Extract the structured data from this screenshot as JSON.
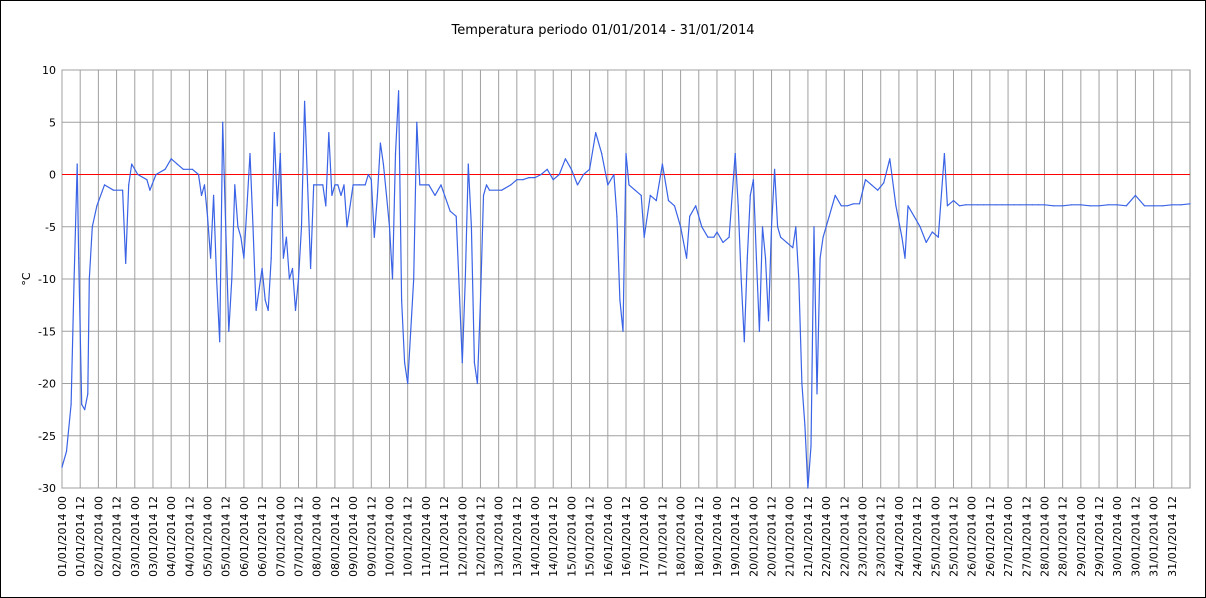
{
  "chart_data": {
    "type": "line",
    "title": "Temperatura periodo 01/01/2014 - 31/01/2014",
    "ylabel": "°C",
    "xlabel": "",
    "ylim": [
      -30,
      10
    ],
    "yticks": [
      10,
      5,
      0,
      -5,
      -10,
      -15,
      -20,
      -25,
      -30
    ],
    "xlim": [
      "2014-01-01 00:00",
      "2014-02-01 00:00"
    ],
    "x_tick_labels": [
      "01/01/2014 00",
      "01/01/2014 12",
      "02/01/2014 00",
      "02/01/2014 12",
      "03/01/2014 00",
      "03/01/2014 12",
      "04/01/2014 00",
      "04/01/2014 12",
      "05/01/2014 00",
      "05/01/2014 12",
      "06/01/2014 00",
      "06/01/2014 12",
      "07/01/2014 00",
      "07/01/2014 12",
      "08/01/2014 00",
      "08/01/2014 12",
      "09/01/2014 00",
      "09/01/2014 12",
      "10/01/2014 00",
      "10/01/2014 12",
      "11/01/2014 00",
      "11/01/2014 12",
      "12/01/2014 00",
      "12/01/2014 12",
      "13/01/2014 00",
      "13/01/2014 12",
      "14/01/2014 00",
      "14/01/2014 12",
      "15/01/2014 00",
      "15/01/2014 12",
      "16/01/2014 00",
      "16/01/2014 12",
      "17/01/2014 00",
      "17/01/2014 12",
      "18/01/2014 00",
      "18/01/2014 12",
      "19/01/2014 00",
      "19/01/2014 12",
      "20/01/2014 00",
      "20/01/2014 12",
      "21/01/2014 00",
      "21/01/2014 12",
      "22/01/2014 00",
      "22/01/2014 12",
      "23/01/2014 00",
      "23/01/2014 12",
      "24/01/2014 00",
      "24/01/2014 12",
      "25/01/2014 00",
      "25/01/2014 12",
      "26/01/2014 00",
      "26/01/2014 12",
      "27/01/2014 00",
      "27/01/2014 12",
      "28/01/2014 00",
      "28/01/2014 12",
      "29/01/2014 00",
      "29/01/2014 12",
      "30/01/2014 00",
      "30/01/2014 12",
      "31/01/2014 00",
      "31/01/2014 12"
    ],
    "grid": true,
    "reference_line": {
      "y": 0,
      "color": "#ff0000"
    },
    "series": [
      {
        "color": "#3a63e6",
        "points": [
          [
            "2014-01-01 00:00",
            -28
          ],
          [
            "2014-01-01 03:00",
            -26.5
          ],
          [
            "2014-01-01 06:00",
            -22
          ],
          [
            "2014-01-01 08:00",
            -10
          ],
          [
            "2014-01-01 10:00",
            1
          ],
          [
            "2014-01-01 11:00",
            -8
          ],
          [
            "2014-01-01 13:00",
            -22
          ],
          [
            "2014-01-01 15:00",
            -22.5
          ],
          [
            "2014-01-01 17:00",
            -21
          ],
          [
            "2014-01-01 18:00",
            -10
          ],
          [
            "2014-01-01 20:00",
            -5
          ],
          [
            "2014-01-01 23:00",
            -3
          ],
          [
            "2014-01-02 04:00",
            -1
          ],
          [
            "2014-01-02 10:00",
            -1.5
          ],
          [
            "2014-01-02 16:00",
            -1.5
          ],
          [
            "2014-01-02 18:00",
            -8.5
          ],
          [
            "2014-01-02 20:00",
            -1
          ],
          [
            "2014-01-02 22:00",
            1
          ],
          [
            "2014-01-03 02:00",
            0
          ],
          [
            "2014-01-03 08:00",
            -0.5
          ],
          [
            "2014-01-03 10:00",
            -1.5
          ],
          [
            "2014-01-03 14:00",
            0
          ],
          [
            "2014-01-03 20:00",
            0.5
          ],
          [
            "2014-01-04 00:00",
            1.5
          ],
          [
            "2014-01-04 04:00",
            1
          ],
          [
            "2014-01-04 08:00",
            0.5
          ],
          [
            "2014-01-04 14:00",
            0.5
          ],
          [
            "2014-01-04 18:00",
            0
          ],
          [
            "2014-01-04 20:00",
            -2
          ],
          [
            "2014-01-04 22:00",
            -1
          ],
          [
            "2014-01-05 00:00",
            -4
          ],
          [
            "2014-01-05 02:00",
            -8
          ],
          [
            "2014-01-05 04:00",
            -2
          ],
          [
            "2014-01-05 06:00",
            -10
          ],
          [
            "2014-01-05 08:00",
            -16
          ],
          [
            "2014-01-05 10:00",
            5
          ],
          [
            "2014-01-05 12:00",
            -5
          ],
          [
            "2014-01-05 14:00",
            -15
          ],
          [
            "2014-01-05 16:00",
            -10
          ],
          [
            "2014-01-05 18:00",
            -1
          ],
          [
            "2014-01-05 20:00",
            -5
          ],
          [
            "2014-01-05 22:00",
            -6
          ],
          [
            "2014-01-06 00:00",
            -8
          ],
          [
            "2014-01-06 02:00",
            -3
          ],
          [
            "2014-01-06 04:00",
            2
          ],
          [
            "2014-01-06 06:00",
            -5
          ],
          [
            "2014-01-06 08:00",
            -13
          ],
          [
            "2014-01-06 10:00",
            -11
          ],
          [
            "2014-01-06 12:00",
            -9
          ],
          [
            "2014-01-06 14:00",
            -12
          ],
          [
            "2014-01-06 16:00",
            -13
          ],
          [
            "2014-01-06 18:00",
            -8
          ],
          [
            "2014-01-06 20:00",
            4
          ],
          [
            "2014-01-06 22:00",
            -3
          ],
          [
            "2014-01-07 00:00",
            2
          ],
          [
            "2014-01-07 02:00",
            -8
          ],
          [
            "2014-01-07 04:00",
            -6
          ],
          [
            "2014-01-07 06:00",
            -10
          ],
          [
            "2014-01-07 08:00",
            -9
          ],
          [
            "2014-01-07 10:00",
            -13
          ],
          [
            "2014-01-07 12:00",
            -10
          ],
          [
            "2014-01-07 14:00",
            -5
          ],
          [
            "2014-01-07 16:00",
            7
          ],
          [
            "2014-01-07 18:00",
            -1
          ],
          [
            "2014-01-07 20:00",
            -9
          ],
          [
            "2014-01-07 22:00",
            -1
          ],
          [
            "2014-01-08 04:00",
            -1
          ],
          [
            "2014-01-08 06:00",
            -3
          ],
          [
            "2014-01-08 08:00",
            4
          ],
          [
            "2014-01-08 10:00",
            -2
          ],
          [
            "2014-01-08 12:00",
            -1
          ],
          [
            "2014-01-08 14:00",
            -1
          ],
          [
            "2014-01-08 16:00",
            -2
          ],
          [
            "2014-01-08 18:00",
            -1
          ],
          [
            "2014-01-08 20:00",
            -5
          ],
          [
            "2014-01-08 22:00",
            -3
          ],
          [
            "2014-01-09 00:00",
            -1
          ],
          [
            "2014-01-09 04:00",
            -1
          ],
          [
            "2014-01-09 08:00",
            -1
          ],
          [
            "2014-01-09 10:00",
            0
          ],
          [
            "2014-01-09 12:00",
            -0.5
          ],
          [
            "2014-01-09 14:00",
            -6
          ],
          [
            "2014-01-09 16:00",
            -2
          ],
          [
            "2014-01-09 18:00",
            3
          ],
          [
            "2014-01-09 20:00",
            1
          ],
          [
            "2014-01-09 22:00",
            -2
          ],
          [
            "2014-01-10 00:00",
            -5
          ],
          [
            "2014-01-10 02:00",
            -10
          ],
          [
            "2014-01-10 04:00",
            2
          ],
          [
            "2014-01-10 06:00",
            8
          ],
          [
            "2014-01-10 08:00",
            -12
          ],
          [
            "2014-01-10 10:00",
            -18
          ],
          [
            "2014-01-10 12:00",
            -20
          ],
          [
            "2014-01-10 14:00",
            -15
          ],
          [
            "2014-01-10 16:00",
            -10
          ],
          [
            "2014-01-10 18:00",
            5
          ],
          [
            "2014-01-10 20:00",
            -1
          ],
          [
            "2014-01-11 02:00",
            -1
          ],
          [
            "2014-01-11 06:00",
            -2
          ],
          [
            "2014-01-11 10:00",
            -1
          ],
          [
            "2014-01-11 16:00",
            -3.5
          ],
          [
            "2014-01-11 20:00",
            -4
          ],
          [
            "2014-01-12 00:00",
            -18
          ],
          [
            "2014-01-12 02:00",
            -10
          ],
          [
            "2014-01-12 04:00",
            1
          ],
          [
            "2014-01-12 06:00",
            -5
          ],
          [
            "2014-01-12 08:00",
            -18
          ],
          [
            "2014-01-12 10:00",
            -20
          ],
          [
            "2014-01-12 12:00",
            -12
          ],
          [
            "2014-01-12 14:00",
            -2
          ],
          [
            "2014-01-12 16:00",
            -1
          ],
          [
            "2014-01-12 18:00",
            -1.5
          ],
          [
            "2014-01-13 02:00",
            -1.5
          ],
          [
            "2014-01-13 08:00",
            -1
          ],
          [
            "2014-01-13 12:00",
            -0.5
          ],
          [
            "2014-01-13 16:00",
            -0.5
          ],
          [
            "2014-01-13 20:00",
            -0.3
          ],
          [
            "2014-01-14 00:00",
            -0.3
          ],
          [
            "2014-01-14 04:00",
            0
          ],
          [
            "2014-01-14 08:00",
            0.5
          ],
          [
            "2014-01-14 12:00",
            -0.5
          ],
          [
            "2014-01-14 16:00",
            0
          ],
          [
            "2014-01-14 20:00",
            1.5
          ],
          [
            "2014-01-15 00:00",
            0.5
          ],
          [
            "2014-01-15 04:00",
            -1
          ],
          [
            "2014-01-15 08:00",
            0
          ],
          [
            "2014-01-15 12:00",
            0.5
          ],
          [
            "2014-01-15 16:00",
            4
          ],
          [
            "2014-01-15 20:00",
            2
          ],
          [
            "2014-01-16 00:00",
            -1
          ],
          [
            "2014-01-16 04:00",
            0
          ],
          [
            "2014-01-16 06:00",
            -4
          ],
          [
            "2014-01-16 08:00",
            -12
          ],
          [
            "2014-01-16 10:00",
            -15
          ],
          [
            "2014-01-16 12:00",
            2
          ],
          [
            "2014-01-16 14:00",
            -1
          ],
          [
            "2014-01-16 18:00",
            -1.5
          ],
          [
            "2014-01-16 22:00",
            -2
          ],
          [
            "2014-01-17 00:00",
            -6
          ],
          [
            "2014-01-17 04:00",
            -2
          ],
          [
            "2014-01-17 08:00",
            -2.5
          ],
          [
            "2014-01-17 12:00",
            1
          ],
          [
            "2014-01-17 16:00",
            -2.5
          ],
          [
            "2014-01-17 20:00",
            -3
          ],
          [
            "2014-01-18 00:00",
            -5
          ],
          [
            "2014-01-18 04:00",
            -8
          ],
          [
            "2014-01-18 06:00",
            -4
          ],
          [
            "2014-01-18 10:00",
            -3
          ],
          [
            "2014-01-18 14:00",
            -5
          ],
          [
            "2014-01-18 18:00",
            -6
          ],
          [
            "2014-01-18 22:00",
            -6
          ],
          [
            "2014-01-19 00:00",
            -5.5
          ],
          [
            "2014-01-19 04:00",
            -6.5
          ],
          [
            "2014-01-19 08:00",
            -6
          ],
          [
            "2014-01-19 12:00",
            2
          ],
          [
            "2014-01-19 14:00",
            -3
          ],
          [
            "2014-01-19 16:00",
            -10
          ],
          [
            "2014-01-19 18:00",
            -16
          ],
          [
            "2014-01-19 20:00",
            -8
          ],
          [
            "2014-01-19 22:00",
            -2
          ],
          [
            "2014-01-20 00:00",
            -0.5
          ],
          [
            "2014-01-20 02:00",
            -8
          ],
          [
            "2014-01-20 04:00",
            -15
          ],
          [
            "2014-01-20 06:00",
            -5
          ],
          [
            "2014-01-20 08:00",
            -8
          ],
          [
            "2014-01-20 10:00",
            -14
          ],
          [
            "2014-01-20 12:00",
            -5
          ],
          [
            "2014-01-20 14:00",
            0.5
          ],
          [
            "2014-01-20 16:00",
            -5
          ],
          [
            "2014-01-20 18:00",
            -6
          ],
          [
            "2014-01-20 22:00",
            -6.5
          ],
          [
            "2014-01-21 02:00",
            -7
          ],
          [
            "2014-01-21 04:00",
            -5
          ],
          [
            "2014-01-21 06:00",
            -10
          ],
          [
            "2014-01-21 08:00",
            -20
          ],
          [
            "2014-01-21 10:00",
            -24
          ],
          [
            "2014-01-21 12:00",
            -30
          ],
          [
            "2014-01-21 14:00",
            -26
          ],
          [
            "2014-01-21 16:00",
            -5
          ],
          [
            "2014-01-21 18:00",
            -21
          ],
          [
            "2014-01-21 20:00",
            -8
          ],
          [
            "2014-01-21 22:00",
            -6
          ],
          [
            "2014-01-22 02:00",
            -4
          ],
          [
            "2014-01-22 06:00",
            -2
          ],
          [
            "2014-01-22 10:00",
            -3
          ],
          [
            "2014-01-22 14:00",
            -3
          ],
          [
            "2014-01-22 18:00",
            -2.8
          ],
          [
            "2014-01-22 22:00",
            -2.8
          ],
          [
            "2014-01-23 02:00",
            -0.5
          ],
          [
            "2014-01-23 06:00",
            -1
          ],
          [
            "2014-01-23 10:00",
            -1.5
          ],
          [
            "2014-01-23 14:00",
            -0.8
          ],
          [
            "2014-01-23 18:00",
            1.5
          ],
          [
            "2014-01-23 22:00",
            -3
          ],
          [
            "2014-01-24 02:00",
            -6
          ],
          [
            "2014-01-24 04:00",
            -8
          ],
          [
            "2014-01-24 06:00",
            -3
          ],
          [
            "2014-01-24 10:00",
            -4
          ],
          [
            "2014-01-24 14:00",
            -5
          ],
          [
            "2014-01-24 18:00",
            -6.5
          ],
          [
            "2014-01-24 22:00",
            -5.5
          ],
          [
            "2014-01-25 02:00",
            -6
          ],
          [
            "2014-01-25 06:00",
            2
          ],
          [
            "2014-01-25 08:00",
            -3
          ],
          [
            "2014-01-25 12:00",
            -2.5
          ],
          [
            "2014-01-25 16:00",
            -3
          ],
          [
            "2014-01-25 20:00",
            -2.9
          ],
          [
            "2014-01-26 00:00",
            -2.9
          ],
          [
            "2014-01-26 04:00",
            -2.9
          ],
          [
            "2014-01-26 08:00",
            -2.9
          ],
          [
            "2014-01-26 12:00",
            -2.9
          ],
          [
            "2014-01-26 16:00",
            -2.9
          ],
          [
            "2014-01-26 20:00",
            -2.9
          ],
          [
            "2014-01-27 00:00",
            -2.9
          ],
          [
            "2014-01-27 04:00",
            -2.9
          ],
          [
            "2014-01-27 08:00",
            -2.9
          ],
          [
            "2014-01-27 12:00",
            -2.9
          ],
          [
            "2014-01-27 16:00",
            -2.9
          ],
          [
            "2014-01-27 20:00",
            -2.9
          ],
          [
            "2014-01-28 00:00",
            -2.9
          ],
          [
            "2014-01-28 06:00",
            -3
          ],
          [
            "2014-01-28 12:00",
            -3
          ],
          [
            "2014-01-28 18:00",
            -2.9
          ],
          [
            "2014-01-29 00:00",
            -2.9
          ],
          [
            "2014-01-29 06:00",
            -3
          ],
          [
            "2014-01-29 12:00",
            -3
          ],
          [
            "2014-01-29 18:00",
            -2.9
          ],
          [
            "2014-01-30 00:00",
            -2.9
          ],
          [
            "2014-01-30 06:00",
            -3
          ],
          [
            "2014-01-30 12:00",
            -2
          ],
          [
            "2014-01-30 18:00",
            -3
          ],
          [
            "2014-01-31 00:00",
            -3
          ],
          [
            "2014-01-31 06:00",
            -3
          ],
          [
            "2014-01-31 12:00",
            -2.9
          ],
          [
            "2014-01-31 18:00",
            -2.9
          ],
          [
            "2014-02-01 00:00",
            -2.8
          ]
        ]
      }
    ]
  }
}
